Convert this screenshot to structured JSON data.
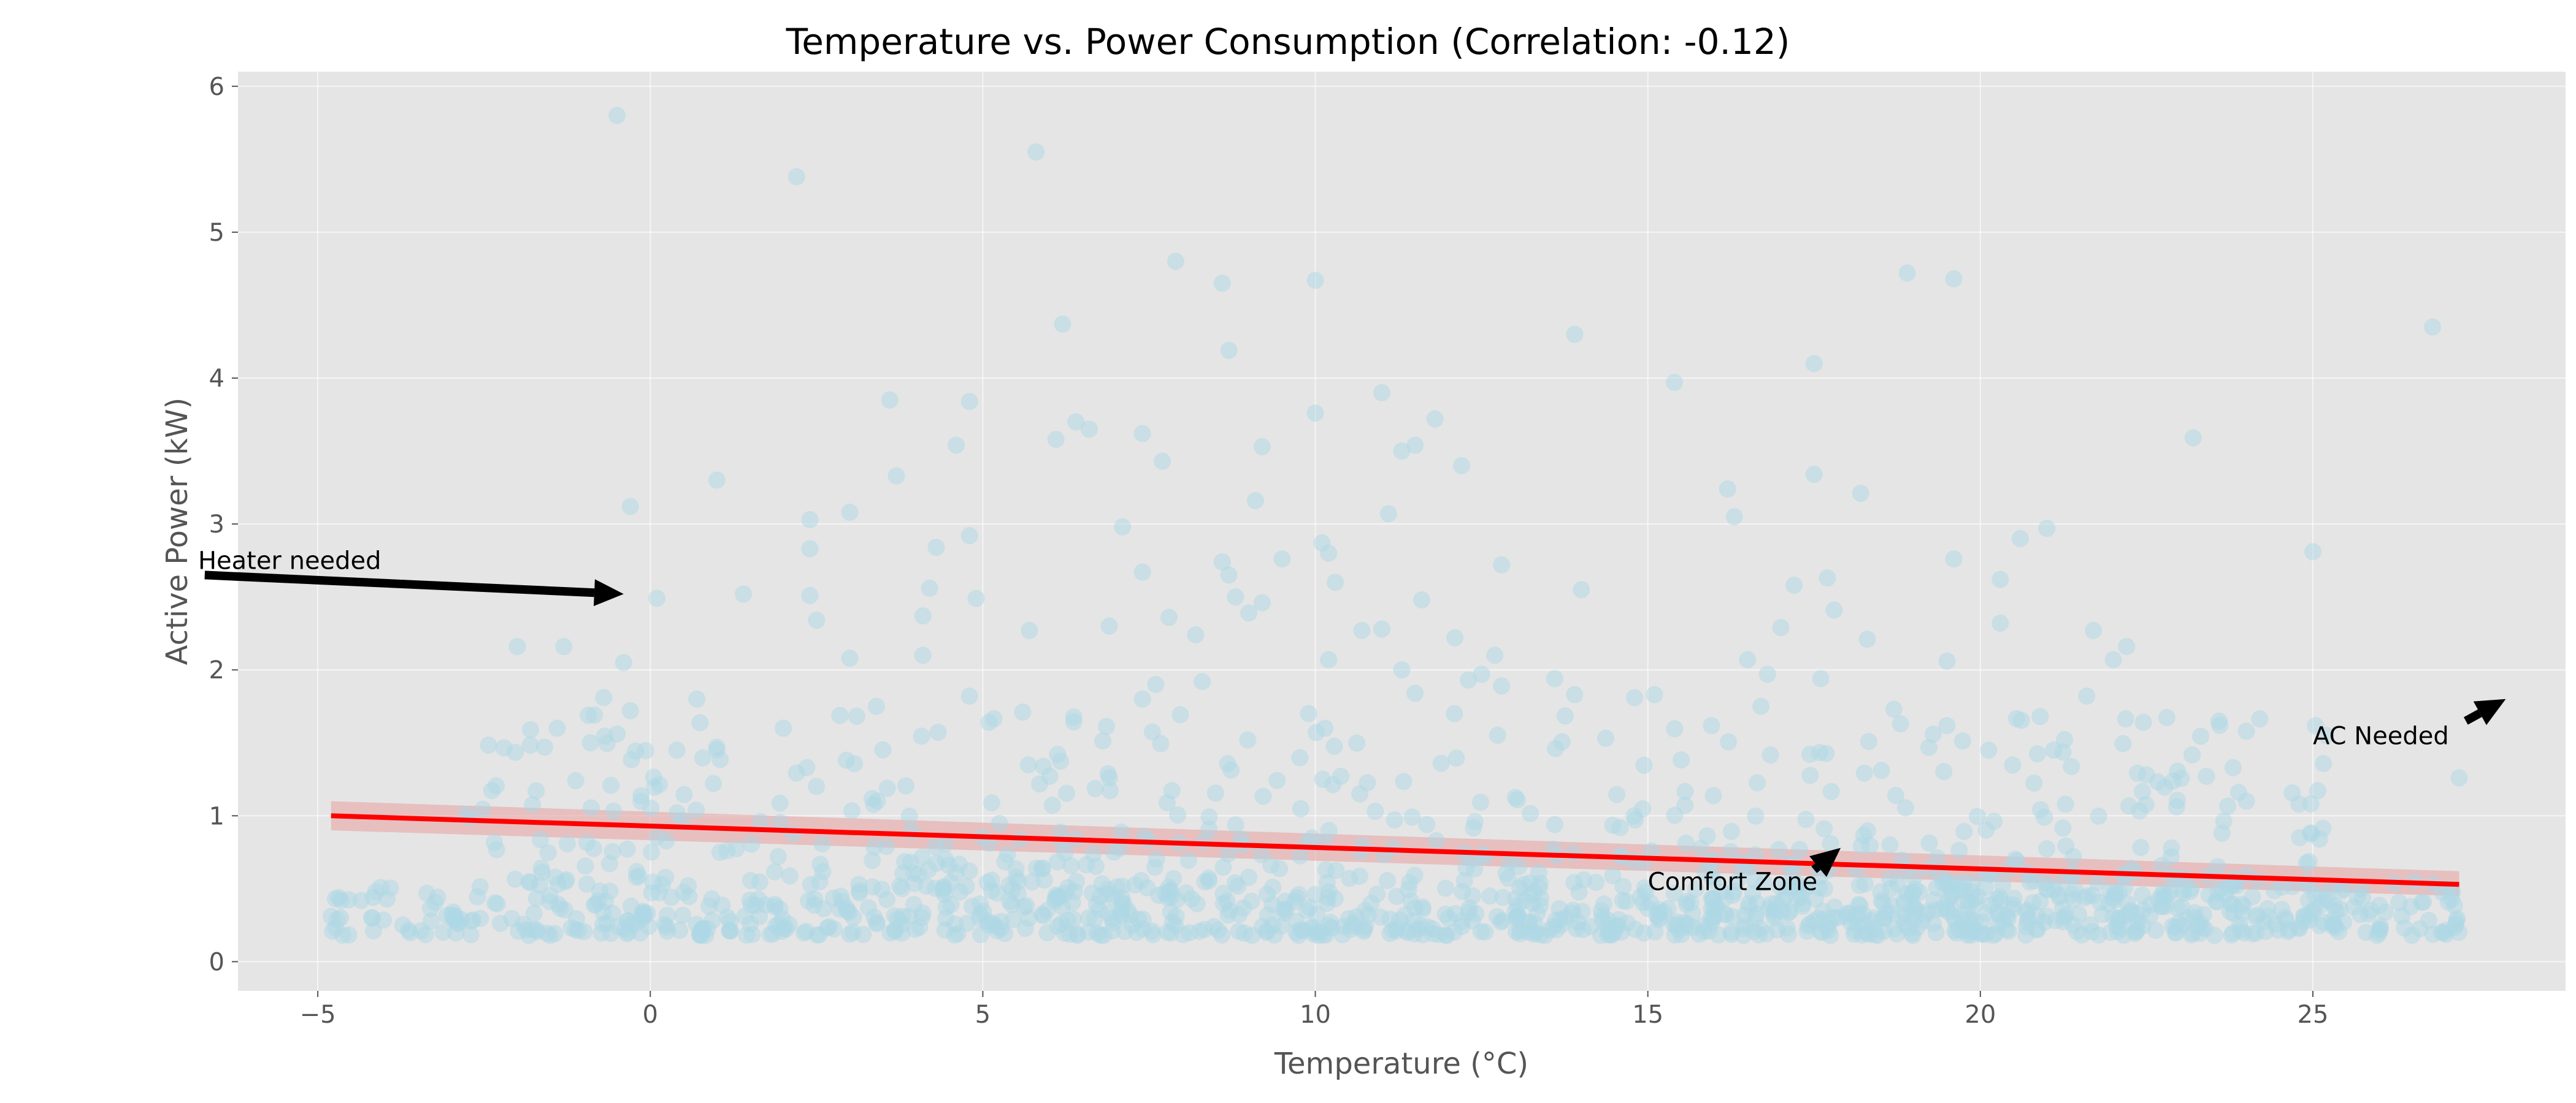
{
  "chart_data": {
    "type": "scatter",
    "title": "Temperature vs. Power Consumption (Correlation: -0.12)",
    "xlabel": "Temperature (°C)",
    "ylabel": "Active Power (kW)",
    "xlim": [
      -6.2,
      28.8
    ],
    "ylim": [
      -0.2,
      6.1
    ],
    "xticks": [
      -5,
      0,
      5,
      10,
      15,
      20,
      25
    ],
    "xtick_labels": [
      "−5",
      "0",
      "5",
      "10",
      "15",
      "20",
      "25"
    ],
    "yticks": [
      0,
      1,
      2,
      3,
      4,
      5,
      6
    ],
    "ytick_labels": [
      "0",
      "1",
      "2",
      "3",
      "4",
      "5",
      "6"
    ],
    "grid": true,
    "background": "#e5e5e5",
    "point_color": "#add8e6",
    "trend_color": "#ff0000",
    "band_color": "#e8a5a5",
    "scatter_high": [
      {
        "x": -0.5,
        "y": 5.8
      },
      {
        "x": 2.2,
        "y": 5.38
      },
      {
        "x": 5.8,
        "y": 5.55
      },
      {
        "x": 7.9,
        "y": 4.8
      },
      {
        "x": 8.6,
        "y": 4.65
      },
      {
        "x": 10.0,
        "y": 4.67
      },
      {
        "x": 18.9,
        "y": 4.72
      },
      {
        "x": 19.6,
        "y": 4.68
      },
      {
        "x": 26.8,
        "y": 4.35
      },
      {
        "x": 6.2,
        "y": 4.37
      },
      {
        "x": 13.9,
        "y": 4.3
      },
      {
        "x": 8.7,
        "y": 4.19
      },
      {
        "x": 17.5,
        "y": 4.1
      },
      {
        "x": 15.4,
        "y": 3.97
      },
      {
        "x": 3.6,
        "y": 3.85
      },
      {
        "x": 4.8,
        "y": 3.84
      },
      {
        "x": 11.0,
        "y": 3.9
      },
      {
        "x": 10.0,
        "y": 3.76
      },
      {
        "x": 11.8,
        "y": 3.72
      },
      {
        "x": 6.4,
        "y": 3.7
      },
      {
        "x": 6.6,
        "y": 3.65
      },
      {
        "x": 7.4,
        "y": 3.62
      },
      {
        "x": 6.1,
        "y": 3.58
      },
      {
        "x": 23.2,
        "y": 3.59
      },
      {
        "x": 4.6,
        "y": 3.54
      },
      {
        "x": 9.2,
        "y": 3.53
      },
      {
        "x": 11.3,
        "y": 3.5
      },
      {
        "x": 11.5,
        "y": 3.54
      },
      {
        "x": 7.7,
        "y": 3.43
      },
      {
        "x": 12.2,
        "y": 3.4
      },
      {
        "x": 3.7,
        "y": 3.33
      },
      {
        "x": 17.5,
        "y": 3.34
      },
      {
        "x": 1.0,
        "y": 3.3
      },
      {
        "x": 16.2,
        "y": 3.24
      },
      {
        "x": 18.2,
        "y": 3.21
      },
      {
        "x": 9.1,
        "y": 3.16
      },
      {
        "x": -0.3,
        "y": 3.12
      },
      {
        "x": 3.0,
        "y": 3.08
      },
      {
        "x": 11.1,
        "y": 3.07
      },
      {
        "x": 16.3,
        "y": 3.05
      },
      {
        "x": 2.4,
        "y": 3.03
      },
      {
        "x": 7.1,
        "y": 2.98
      },
      {
        "x": 21.0,
        "y": 2.97
      },
      {
        "x": 4.8,
        "y": 2.92
      },
      {
        "x": 20.6,
        "y": 2.9
      },
      {
        "x": 10.1,
        "y": 2.87
      },
      {
        "x": 4.3,
        "y": 2.84
      },
      {
        "x": 2.4,
        "y": 2.83
      },
      {
        "x": 25.0,
        "y": 2.81
      },
      {
        "x": 10.2,
        "y": 2.8
      },
      {
        "x": 19.6,
        "y": 2.76
      },
      {
        "x": 9.5,
        "y": 2.76
      },
      {
        "x": 8.6,
        "y": 2.74
      },
      {
        "x": 12.8,
        "y": 2.72
      },
      {
        "x": 7.4,
        "y": 2.67
      },
      {
        "x": 8.7,
        "y": 2.65
      },
      {
        "x": 17.7,
        "y": 2.63
      },
      {
        "x": 20.3,
        "y": 2.62
      },
      {
        "x": 10.3,
        "y": 2.6
      },
      {
        "x": 17.2,
        "y": 2.58
      },
      {
        "x": 4.2,
        "y": 2.56
      },
      {
        "x": 14.0,
        "y": 2.55
      },
      {
        "x": 1.4,
        "y": 2.52
      },
      {
        "x": 2.4,
        "y": 2.51
      },
      {
        "x": 8.8,
        "y": 2.5
      },
      {
        "x": 4.9,
        "y": 2.49
      },
      {
        "x": 0.1,
        "y": 2.49
      },
      {
        "x": 11.6,
        "y": 2.48
      },
      {
        "x": 9.2,
        "y": 2.46
      },
      {
        "x": 9.0,
        "y": 2.39
      },
      {
        "x": 17.8,
        "y": 2.41
      },
      {
        "x": 7.8,
        "y": 2.36
      },
      {
        "x": 4.1,
        "y": 2.37
      },
      {
        "x": 2.5,
        "y": 2.34
      },
      {
        "x": 20.3,
        "y": 2.32
      },
      {
        "x": 6.9,
        "y": 2.3
      },
      {
        "x": 17.0,
        "y": 2.29
      },
      {
        "x": 11.0,
        "y": 2.28
      },
      {
        "x": 10.7,
        "y": 2.27
      },
      {
        "x": 5.7,
        "y": 2.27
      },
      {
        "x": 21.7,
        "y": 2.27
      },
      {
        "x": 8.2,
        "y": 2.24
      },
      {
        "x": 12.1,
        "y": 2.22
      },
      {
        "x": 18.3,
        "y": 2.21
      },
      {
        "x": -2.0,
        "y": 2.16
      },
      {
        "x": -1.3,
        "y": 2.16
      },
      {
        "x": 22.2,
        "y": 2.16
      },
      {
        "x": 4.1,
        "y": 2.1
      },
      {
        "x": 3.0,
        "y": 2.08
      },
      {
        "x": 12.7,
        "y": 2.1
      },
      {
        "x": 10.2,
        "y": 2.07
      },
      {
        "x": 22.0,
        "y": 2.07
      },
      {
        "x": 16.5,
        "y": 2.07
      },
      {
        "x": 19.5,
        "y": 2.06
      },
      {
        "x": -0.4,
        "y": 2.05
      },
      {
        "x": 11.3,
        "y": 2.0
      },
      {
        "x": 12.5,
        "y": 1.97
      },
      {
        "x": 16.8,
        "y": 1.97
      },
      {
        "x": 17.6,
        "y": 1.94
      },
      {
        "x": 13.6,
        "y": 1.94
      },
      {
        "x": 12.3,
        "y": 1.93
      },
      {
        "x": 8.3,
        "y": 1.92
      },
      {
        "x": 7.6,
        "y": 1.9
      },
      {
        "x": 12.8,
        "y": 1.89
      },
      {
        "x": 21.6,
        "y": 1.82
      },
      {
        "x": 14.8,
        "y": 1.81
      },
      {
        "x": 15.1,
        "y": 1.83
      },
      {
        "x": 11.5,
        "y": 1.84
      },
      {
        "x": 4.8,
        "y": 1.82
      },
      {
        "x": 13.9,
        "y": 1.83
      },
      {
        "x": -0.7,
        "y": 1.81
      },
      {
        "x": 0.7,
        "y": 1.8
      },
      {
        "x": 7.4,
        "y": 1.8
      },
      {
        "x": 5.6,
        "y": 1.71
      },
      {
        "x": 9.9,
        "y": 1.7
      },
      {
        "x": 20.9,
        "y": 1.68
      },
      {
        "x": -0.3,
        "y": 1.72
      },
      {
        "x": 18.7,
        "y": 1.73
      },
      {
        "x": 16.7,
        "y": 1.75
      },
      {
        "x": 3.4,
        "y": 1.75
      },
      {
        "x": 18.8,
        "y": 1.63
      },
      {
        "x": 23.6,
        "y": 1.62
      },
      {
        "x": 24.0,
        "y": 1.58
      },
      {
        "x": -1.8,
        "y": 1.59
      },
      {
        "x": -1.4,
        "y": 1.6
      },
      {
        "x": 2.0,
        "y": 1.6
      },
      {
        "x": -0.5,
        "y": 1.56
      },
      {
        "x": -0.9,
        "y": 1.5
      },
      {
        "x": 0.4,
        "y": 1.45
      },
      {
        "x": 1.0,
        "y": 1.47
      },
      {
        "x": 21.1,
        "y": 1.45
      },
      {
        "x": 23.8,
        "y": 1.33
      },
      {
        "x": 24.0,
        "y": 1.1
      },
      {
        "x": 27.2,
        "y": 1.26
      },
      {
        "x": 22.5,
        "y": 1.28
      },
      {
        "x": 24.8,
        "y": 0.85
      },
      {
        "x": 25.1,
        "y": 0.84
      }
    ],
    "scatter_dense": {
      "x_range": [
        -4.8,
        27.2
      ],
      "y_range": [
        0.18,
        0.55
      ],
      "mid_band_y_range": [
        0.55,
        1.7
      ],
      "n_low": 1000,
      "n_mid": 420,
      "seed": 7
    },
    "trend_line": {
      "x": [
        -4.8,
        27.2
      ],
      "y": [
        1.0,
        0.53
      ]
    },
    "confidence_band": {
      "x": [
        -4.8,
        27.2
      ],
      "upper": [
        1.1,
        0.62
      ],
      "lower": [
        0.9,
        0.45
      ]
    },
    "annotations": [
      {
        "text": "Heater needed",
        "x": -6.8,
        "y": 2.75,
        "arrow_from": [
          -6.7,
          2.65
        ],
        "arrow_to": [
          -0.4,
          2.52
        ]
      },
      {
        "text": "AC Needed",
        "x": 25.0,
        "y": 1.55,
        "arrow_from": [
          27.3,
          1.65
        ],
        "arrow_to": [
          27.9,
          1.8
        ]
      },
      {
        "text": "Comfort Zone",
        "x": 15.0,
        "y": 0.55,
        "arrow_from": [
          17.5,
          0.63
        ],
        "arrow_to": [
          17.9,
          0.78
        ]
      }
    ]
  }
}
